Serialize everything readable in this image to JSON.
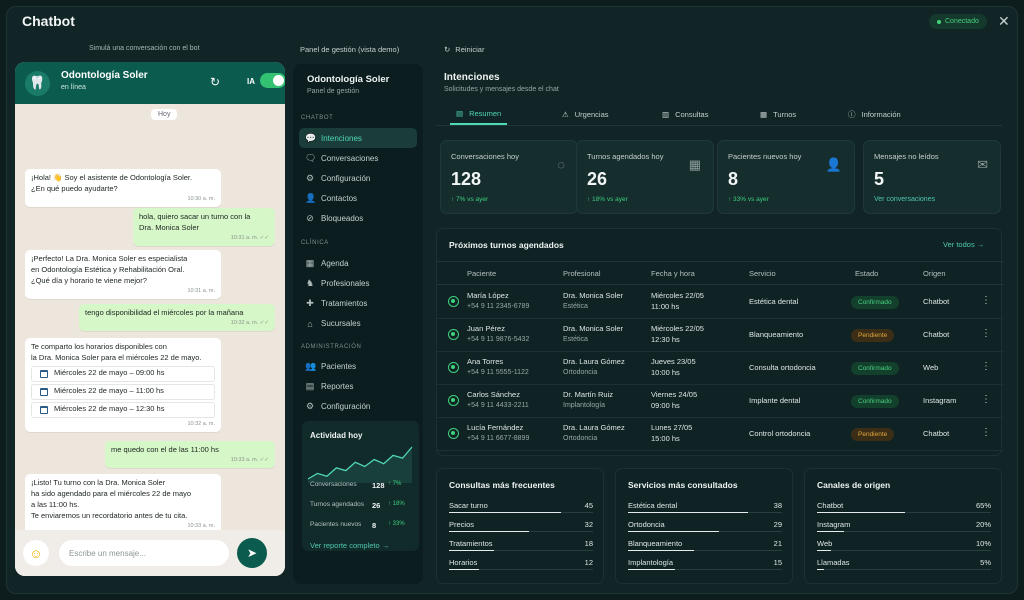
{
  "app": {
    "title": "Chatbot",
    "status": "Conectado"
  },
  "sim_label": "Simulá una conversación con el bot",
  "phone": {
    "bot_name": "Odontología Soler",
    "bot_status": "en línea",
    "ia_label": "IA",
    "ia_enabled": true,
    "day_chip": "Hoy",
    "messages": [
      {
        "dir": "in",
        "lines": [
          "¡Hola! 👋 Soy el asistente de Odontología Soler.",
          "¿En qué puedo ayudarte?"
        ],
        "time": "10:30 a. m."
      },
      {
        "dir": "out",
        "lines": [
          "hola, quiero sacar un turno con la",
          "Dra. Monica Soler"
        ],
        "time": "10:31 a. m. ✓✓"
      },
      {
        "dir": "in",
        "lines": [
          "¡Perfecto! La Dra. Monica Soler es especialista",
          "en Odontología Estética y Rehabilitación Oral.",
          "¿Qué día y horario te viene mejor?"
        ],
        "time": "10:31 a. m."
      },
      {
        "dir": "out",
        "lines": [
          "tengo disponibilidad el miércoles por la mañana"
        ],
        "time": "10:32 a. m. ✓✓"
      },
      {
        "dir": "in",
        "lines": [
          "Te comparto los horarios disponibles con",
          "la Dra. Monica Soler para el miércoles 22 de mayo."
        ],
        "time": ""
      },
      {
        "dir": "out",
        "lines": [
          "me quedo con el de las 11:00 hs"
        ],
        "time": "10:33 a. m. ✓✓"
      },
      {
        "dir": "in",
        "lines": [
          "¡Listo! Tu turno con la Dra. Monica Soler",
          "ha sido agendado para el miércoles 22 de mayo",
          "a las 11:00 hs.",
          "Te enviaremos un recordatorio antes de tu cita."
        ],
        "time": "10:33 a. m."
      }
    ],
    "slots": [
      "Miércoles 22 de mayo – 09:00 hs",
      "Miércoles 22 de mayo – 11:00 hs",
      "Miércoles 22 de mayo – 12:30 hs"
    ],
    "slots_time": "10:32 a. m.",
    "input_placeholder": "Escribe un mensaje..."
  },
  "panel_label": "Panel de gestión (vista demo)",
  "sidebar": {
    "title": "Odontología Soler",
    "subtitle": "Panel de gestión",
    "sections": [
      "CHATBOT",
      "CLÍNICA",
      "ADMINISTRACIÓN"
    ],
    "chatbot_items": [
      "Intenciones",
      "Conversaciones",
      "Configuración",
      "Contactos",
      "Bloqueados"
    ],
    "clinica_items": [
      "Agenda",
      "Profesionales",
      "Tratamientos",
      "Sucursales"
    ],
    "admin_items": [
      "Pacientes",
      "Reportes",
      "Configuración"
    ],
    "activity": {
      "title": "Actividad hoy",
      "rows": [
        {
          "label": "Conversaciones",
          "value": "128",
          "delta": "↑ 7%"
        },
        {
          "label": "Turnos agendados",
          "value": "26",
          "delta": "↑ 18%"
        },
        {
          "label": "Pacientes nuevos",
          "value": "8",
          "delta": "↑ 33%"
        }
      ],
      "spark": [
        10,
        14,
        12,
        18,
        16,
        22,
        19,
        24,
        21,
        27,
        25,
        33
      ],
      "link": "Ver reporte completo →"
    }
  },
  "main": {
    "reset": "Reiniciar",
    "title": "Intenciones",
    "subtitle": "Solicitudes y mensajes desde el chat",
    "tabs": [
      "Resumen",
      "Urgencias",
      "Consultas",
      "Turnos",
      "Información"
    ],
    "cards": [
      {
        "label": "Conversaciones hoy",
        "value": "128",
        "delta": "↑ 7% vs ayer",
        "icon": "chat-bubble-icon"
      },
      {
        "label": "Turnos agendados hoy",
        "value": "26",
        "delta": "↑ 18% vs ayer",
        "icon": "calendar-icon"
      },
      {
        "label": "Pacientes nuevos hoy",
        "value": "8",
        "delta": "↑ 33% vs ayer",
        "icon": "add-user-icon"
      },
      {
        "label": "Mensajes no leídos",
        "value": "5",
        "link": "Ver conversaciones",
        "icon": "mail-icon"
      }
    ],
    "appointments": {
      "title": "Próximos turnos agendados",
      "link": "Ver todos →",
      "headers": [
        "Paciente",
        "Profesional",
        "Fecha y hora",
        "Servicio",
        "Estado",
        "Origen"
      ],
      "rows": [
        {
          "name": "María López",
          "phone": "+54 9 11 2345-6789",
          "pro": "Dra. Monica Soler",
          "spec": "Estética",
          "date": "Miércoles 22/05",
          "hour": "11:00 hs",
          "service": "Estética dental",
          "status": "Confirmado",
          "status_kind": "ok",
          "origin": "Chatbot"
        },
        {
          "name": "Juan Pérez",
          "phone": "+54 9 11 9876-5432",
          "pro": "Dra. Monica Soler",
          "spec": "Estética",
          "date": "Miércoles 22/05",
          "hour": "12:30 hs",
          "service": "Blanqueamiento",
          "status": "Pendiente",
          "status_kind": "pend",
          "origin": "Chatbot"
        },
        {
          "name": "Ana Torres",
          "phone": "+54 9 11 5555-1122",
          "pro": "Dra. Laura Gómez",
          "spec": "Ortodoncia",
          "date": "Jueves 23/05",
          "hour": "10:00 hs",
          "service": "Consulta ortodoncia",
          "status": "Confirmado",
          "status_kind": "ok",
          "origin": "Web"
        },
        {
          "name": "Carlos Sánchez",
          "phone": "+54 9 11 4433-2211",
          "pro": "Dr. Martín Ruiz",
          "spec": "Implantología",
          "date": "Viernes 24/05",
          "hour": "09:00 hs",
          "service": "Implante dental",
          "status": "Confirmado",
          "status_kind": "ok",
          "origin": "Instagram"
        },
        {
          "name": "Lucía Fernández",
          "phone": "+54 9 11 6677-8899",
          "pro": "Dra. Laura Gómez",
          "spec": "Ortodoncia",
          "date": "Lunes 27/05",
          "hour": "15:00 hs",
          "service": "Control ortodoncia",
          "status": "Pendiente",
          "status_kind": "pend",
          "origin": "Chatbot"
        }
      ]
    },
    "panels": [
      {
        "title": "Consultas más frecuentes",
        "rows": [
          {
            "label": "Sacar turno",
            "value": "45",
            "frac": 1.0
          },
          {
            "label": "Precios",
            "value": "32",
            "frac": 0.71
          },
          {
            "label": "Tratamientos",
            "value": "18",
            "frac": 0.4
          },
          {
            "label": "Horarios",
            "value": "12",
            "frac": 0.27
          }
        ]
      },
      {
        "title": "Servicios más consultados",
        "rows": [
          {
            "label": "Estética dental",
            "value": "38",
            "frac": 1.0
          },
          {
            "label": "Ortodoncia",
            "value": "29",
            "frac": 0.76
          },
          {
            "label": "Blanqueamiento",
            "value": "21",
            "frac": 0.55
          },
          {
            "label": "Implantología",
            "value": "15",
            "frac": 0.39
          }
        ]
      },
      {
        "title": "Canales de origen",
        "rows": [
          {
            "label": "Chatbot",
            "value": "65%",
            "frac": 0.65
          },
          {
            "label": "Instagram",
            "value": "20%",
            "frac": 0.2
          },
          {
            "label": "Web",
            "value": "10%",
            "frac": 0.1
          },
          {
            "label": "Llamadas",
            "value": "5%",
            "frac": 0.05
          }
        ]
      }
    ]
  },
  "colors": {
    "accent": "#4fd8b4",
    "whatsapp_green": "#0b5c4f",
    "ok": "#48d07e",
    "pending": "#e1a43b"
  }
}
